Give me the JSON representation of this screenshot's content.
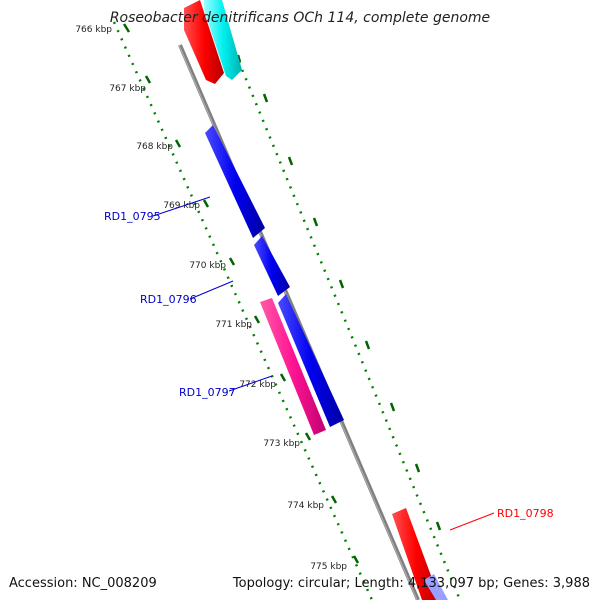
{
  "title": "Roseobacter denitrificans OCh 114, complete genome",
  "footer": {
    "accession": "Accession: NC_008209",
    "summary": "Topology: circular; Length: 4,133,097 bp; Genes: 3,988"
  },
  "ticks": [
    "766 kbp",
    "767 kbp",
    "768 kbp",
    "769 kbp",
    "770 kbp",
    "771 kbp",
    "772 kbp",
    "773 kbp",
    "774 kbp",
    "775 kbp"
  ],
  "genes": [
    {
      "name": "RD1_0795",
      "color": "#0000cc"
    },
    {
      "name": "RD1_0796",
      "color": "#0000cc"
    },
    {
      "name": "RD1_0797",
      "color": "#0000cc"
    },
    {
      "name": "RD1_0798",
      "color": "#ff0000"
    }
  ],
  "colors": {
    "backbone": "#808080",
    "dots": "#008000",
    "forward_gene": "#0000ff",
    "reverse_gene": "#ff0000",
    "highlight_gene": "#ff1493",
    "rna_gene": "#00ffff"
  }
}
